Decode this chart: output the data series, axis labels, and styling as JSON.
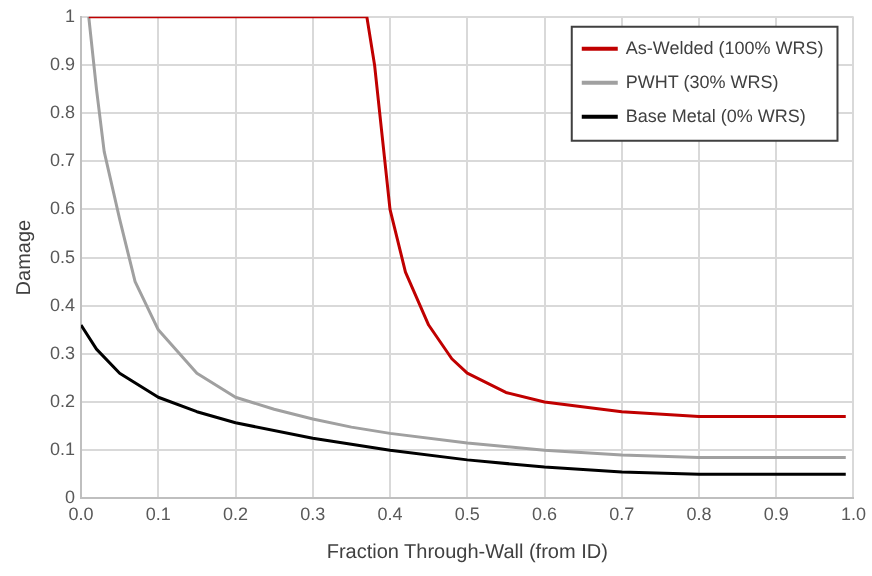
{
  "chart_data": {
    "type": "line",
    "xlabel": "Fraction Through-Wall (from ID)",
    "ylabel": "Damage",
    "xlim": [
      0,
      1
    ],
    "xticks": [
      {
        "value": 0,
        "label": "0.0"
      },
      {
        "value": 0.1,
        "label": "0.1"
      },
      {
        "value": 0.2,
        "label": "0.2"
      },
      {
        "value": 0.3,
        "label": "0.3"
      },
      {
        "value": 0.4,
        "label": "0.4"
      },
      {
        "value": 0.5,
        "label": "0.5"
      },
      {
        "value": 0.6,
        "label": "0.6"
      },
      {
        "value": 0.7,
        "label": "0.7"
      },
      {
        "value": 0.8,
        "label": "0.8"
      },
      {
        "value": 0.9,
        "label": "0.9"
      },
      {
        "value": 1,
        "label": "1.0"
      }
    ],
    "ylim": [
      0,
      1
    ],
    "yticks": [
      0,
      0.1,
      0.2,
      0.3,
      0.4,
      0.5,
      0.6,
      0.7,
      0.8,
      0.9,
      1
    ],
    "grid": true,
    "legend": "top right",
    "marker": "none",
    "line_style": "solid",
    "series": [
      {
        "name": "As-Welded (100% WRS)",
        "color": "#c00000",
        "x": [
          0.01,
          0.1,
          0.2,
          0.3,
          0.37,
          0.38,
          0.39,
          0.4,
          0.42,
          0.45,
          0.48,
          0.5,
          0.55,
          0.6,
          0.7,
          0.8,
          0.9,
          0.99
        ],
        "values": [
          1,
          1,
          1,
          1,
          1,
          0.9,
          0.75,
          0.6,
          0.47,
          0.36,
          0.29,
          0.26,
          0.22,
          0.2,
          0.18,
          0.17,
          0.17,
          0.17
        ]
      },
      {
        "name": "PWHT (30% WRS)",
        "color": "#a0a0a0",
        "x": [
          0.01,
          0.02,
          0.03,
          0.05,
          0.07,
          0.1,
          0.15,
          0.2,
          0.25,
          0.3,
          0.35,
          0.4,
          0.5,
          0.6,
          0.7,
          0.8,
          0.9,
          0.99
        ],
        "values": [
          1,
          0.85,
          0.72,
          0.58,
          0.45,
          0.35,
          0.26,
          0.21,
          0.185,
          0.165,
          0.148,
          0.135,
          0.115,
          0.1,
          0.09,
          0.085,
          0.085,
          0.085
        ]
      },
      {
        "name": "Base Metal (0% WRS)",
        "color": "#000000",
        "x": [
          0,
          0.02,
          0.05,
          0.1,
          0.15,
          0.2,
          0.3,
          0.4,
          0.5,
          0.6,
          0.7,
          0.8,
          0.9,
          0.99
        ],
        "values": [
          0.36,
          0.31,
          0.26,
          0.21,
          0.18,
          0.157,
          0.125,
          0.1,
          0.08,
          0.065,
          0.055,
          0.05,
          0.05,
          0.05
        ]
      }
    ]
  }
}
